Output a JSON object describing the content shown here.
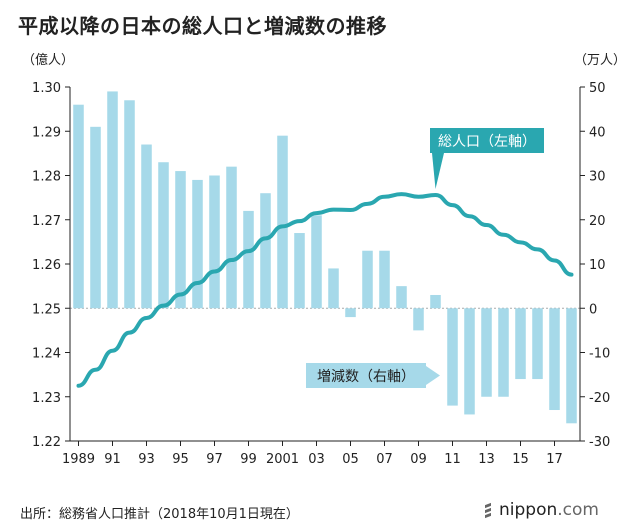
{
  "title": "平成以降の日本の総人口と増減数の推移",
  "source": "出所：総務省人口推計（2018年10月1日現在）",
  "brand": {
    "main": "nippon",
    "suffix": ".com"
  },
  "colors": {
    "bar": "#a6d9e9",
    "line": "#2aa7b0",
    "callout_line_bg": "#2aa7b0",
    "callout_bar_bg": "#a6d9e9",
    "axis": "#222222",
    "grid": "#aaaaaa"
  },
  "chart_data": {
    "type": "bar+line",
    "title": "平成以降の日本の総人口と増減数の推移",
    "left_axis": {
      "unit_label": "（億人）",
      "range": [
        1.22,
        1.3
      ],
      "ticks": [
        "1.22",
        "1.23",
        "1.24",
        "1.25",
        "1.26",
        "1.27",
        "1.28",
        "1.29",
        "1.30"
      ]
    },
    "right_axis": {
      "unit_label": "（万人）",
      "range": [
        -30,
        50
      ],
      "ticks": [
        "-30",
        "-20",
        "-10",
        "0",
        "10",
        "20",
        "30",
        "40",
        "50"
      ]
    },
    "x_tick_labels": [
      "1989",
      "91",
      "93",
      "95",
      "97",
      "99",
      "2001",
      "03",
      "05",
      "07",
      "09",
      "11",
      "13",
      "15",
      "17"
    ],
    "x": [
      1989,
      1990,
      1991,
      1992,
      1993,
      1994,
      1995,
      1996,
      1997,
      1998,
      1999,
      2000,
      2001,
      2002,
      2003,
      2004,
      2005,
      2006,
      2007,
      2008,
      2009,
      2010,
      2011,
      2012,
      2013,
      2014,
      2015,
      2016,
      2017,
      2018
    ],
    "series": [
      {
        "name": "増減数（右軸）",
        "type": "bar",
        "axis": "right",
        "values": [
          46,
          41,
          49,
          47,
          37,
          33,
          31,
          29,
          30,
          32,
          22,
          26,
          39,
          17,
          21,
          9,
          -2,
          13,
          13,
          5,
          -5,
          3,
          -22,
          -24,
          -20,
          -20,
          -16,
          -16,
          -23,
          -26
        ]
      },
      {
        "name": "総人口（左軸）",
        "type": "line",
        "axis": "left",
        "values": [
          1.2325,
          1.2361,
          1.2404,
          1.2445,
          1.2478,
          1.2506,
          1.2531,
          1.2557,
          1.2583,
          1.2609,
          1.2629,
          1.2658,
          1.2685,
          1.2697,
          1.2715,
          1.2723,
          1.2722,
          1.2736,
          1.2752,
          1.2758,
          1.2752,
          1.2756,
          1.2733,
          1.2708,
          1.2688,
          1.2666,
          1.2649,
          1.2633,
          1.2608,
          1.2576
        ]
      }
    ],
    "annotations": [
      "総人口（左軸）",
      "増減数（右軸）"
    ]
  }
}
